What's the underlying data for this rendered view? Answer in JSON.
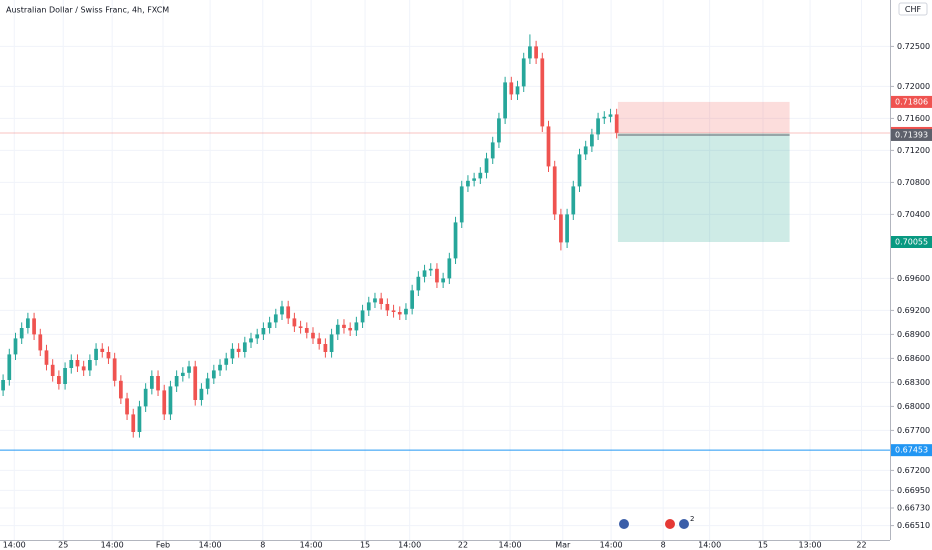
{
  "chart_data": {
    "type": "candlestick",
    "title": "Australian Dollar / Swiss Franc, 4h, FXCM",
    "currency": "CHF",
    "event_badge": "2",
    "up_color": "#26a69a",
    "down_color": "#ef5350",
    "grid": true,
    "xlim": [
      -0.5,
      143.1
    ],
    "xticks": [
      {
        "value": 1.8,
        "label": "14:00"
      },
      {
        "value": 9.7,
        "label": "25"
      },
      {
        "value": 17.6,
        "label": "14:00"
      },
      {
        "value": 25.8,
        "label": "Feb"
      },
      {
        "value": 33.4,
        "label": "14:00"
      },
      {
        "value": 41.9,
        "label": "8"
      },
      {
        "value": 49.7,
        "label": "14:00"
      },
      {
        "value": 58.4,
        "label": "15"
      },
      {
        "value": 65.6,
        "label": "14:00"
      },
      {
        "value": 74.2,
        "label": "22"
      },
      {
        "value": 81.8,
        "label": "14:00"
      },
      {
        "value": 90.3,
        "label": "Mar"
      },
      {
        "value": 98.1,
        "label": "14:00"
      },
      {
        "value": 106.5,
        "label": "8"
      },
      {
        "value": 114.0,
        "label": "14:00"
      },
      {
        "value": 122.6,
        "label": "15"
      },
      {
        "value": 130.2,
        "label": "13:00"
      },
      {
        "value": 138.5,
        "label": "22"
      }
    ],
    "ylim": [
      0.6633,
      0.7308
    ],
    "yticks": [
      {
        "value": 0.725,
        "label": "0.72500"
      },
      {
        "value": 0.72,
        "label": "0.72000"
      },
      {
        "value": 0.716,
        "label": "0.71600"
      },
      {
        "value": 0.712,
        "label": "0.71200"
      },
      {
        "value": 0.708,
        "label": "0.70800"
      },
      {
        "value": 0.704,
        "label": "0.70400"
      },
      {
        "value": 0.696,
        "label": "0.69600"
      },
      {
        "value": 0.692,
        "label": "0.69200"
      },
      {
        "value": 0.689,
        "label": "0.68900"
      },
      {
        "value": 0.686,
        "label": "0.68600"
      },
      {
        "value": 0.683,
        "label": "0.68300"
      },
      {
        "value": 0.68,
        "label": "0.68000"
      },
      {
        "value": 0.677,
        "label": "0.67700"
      },
      {
        "value": 0.672,
        "label": "0.67200"
      },
      {
        "value": 0.6695,
        "label": "0.66950"
      },
      {
        "value": 0.6673,
        "label": "0.66730"
      },
      {
        "value": 0.6651,
        "label": "0.66510"
      }
    ],
    "open": [
      0.682,
      0.6833,
      0.6865,
      0.6885,
      0.6898,
      0.691,
      0.689,
      0.687,
      0.6852,
      0.6838,
      0.6828,
      0.6848,
      0.6858,
      0.685,
      0.6845,
      0.6858,
      0.6872,
      0.6868,
      0.686,
      0.6832,
      0.681,
      0.679,
      0.6768,
      0.68,
      0.6822,
      0.6838,
      0.682,
      0.679,
      0.6825,
      0.6838,
      0.6842,
      0.685,
      0.6808,
      0.6822,
      0.6835,
      0.6845,
      0.6852,
      0.686,
      0.6872,
      0.6868,
      0.688,
      0.6885,
      0.689,
      0.6898,
      0.6905,
      0.6915,
      0.6925,
      0.691,
      0.69,
      0.6898,
      0.6892,
      0.6885,
      0.6878,
      0.6868,
      0.689,
      0.6902,
      0.6898,
      0.6895,
      0.6905,
      0.692,
      0.693,
      0.6935,
      0.6928,
      0.692,
      0.6918,
      0.6915,
      0.6922,
      0.6945,
      0.6962,
      0.697,
      0.6972,
      0.6955,
      0.696,
      0.6985,
      0.703,
      0.7075,
      0.7082,
      0.7085,
      0.7092,
      0.711,
      0.713,
      0.716,
      0.7205,
      0.719,
      0.72,
      0.7235,
      0.725,
      0.7235,
      0.715,
      0.71,
      0.704,
      0.7005,
      0.704,
      0.7075,
      0.7115,
      0.7125,
      0.714,
      0.716,
      0.7162,
      0.7165
    ],
    "high": [
      0.684,
      0.6872,
      0.6892,
      0.6905,
      0.6917,
      0.6917,
      0.6897,
      0.6877,
      0.6859,
      0.6845,
      0.6855,
      0.6865,
      0.6865,
      0.6857,
      0.6865,
      0.6879,
      0.6879,
      0.6875,
      0.6867,
      0.6839,
      0.6817,
      0.6797,
      0.6807,
      0.6829,
      0.6845,
      0.6845,
      0.6827,
      0.6832,
      0.6845,
      0.6849,
      0.6857,
      0.6857,
      0.6829,
      0.6842,
      0.6852,
      0.6859,
      0.6867,
      0.6879,
      0.6879,
      0.6887,
      0.6892,
      0.6897,
      0.6905,
      0.6912,
      0.6922,
      0.6932,
      0.6932,
      0.6917,
      0.6907,
      0.6905,
      0.6899,
      0.6892,
      0.6885,
      0.6897,
      0.6909,
      0.6909,
      0.6905,
      0.6912,
      0.6927,
      0.6937,
      0.6942,
      0.6942,
      0.6935,
      0.6927,
      0.6925,
      0.6929,
      0.6952,
      0.6969,
      0.6977,
      0.6979,
      0.6979,
      0.6967,
      0.6992,
      0.7037,
      0.7082,
      0.7089,
      0.7092,
      0.7099,
      0.7117,
      0.7137,
      0.7167,
      0.7212,
      0.7212,
      0.7207,
      0.7242,
      0.7265,
      0.7257,
      0.7242,
      0.7157,
      0.7107,
      0.7047,
      0.7047,
      0.7082,
      0.7122,
      0.7132,
      0.7147,
      0.7167,
      0.7169,
      0.7172,
      0.7172
    ],
    "low": [
      0.6813,
      0.6826,
      0.6858,
      0.6878,
      0.6891,
      0.6883,
      0.6863,
      0.6845,
      0.6831,
      0.6821,
      0.6821,
      0.6841,
      0.6843,
      0.6838,
      0.6838,
      0.6851,
      0.6861,
      0.6853,
      0.6825,
      0.6803,
      0.6783,
      0.6761,
      0.6761,
      0.6793,
      0.6815,
      0.6813,
      0.6783,
      0.6783,
      0.6818,
      0.6831,
      0.6835,
      0.6801,
      0.6801,
      0.6815,
      0.6828,
      0.6838,
      0.6845,
      0.6853,
      0.6861,
      0.6861,
      0.6873,
      0.6878,
      0.6883,
      0.6891,
      0.6898,
      0.6908,
      0.6903,
      0.6893,
      0.6891,
      0.6885,
      0.6878,
      0.6871,
      0.6861,
      0.6861,
      0.6883,
      0.6891,
      0.6888,
      0.6888,
      0.6898,
      0.6913,
      0.6923,
      0.6921,
      0.6913,
      0.6911,
      0.6908,
      0.6908,
      0.6915,
      0.6938,
      0.6955,
      0.6963,
      0.6948,
      0.6948,
      0.6953,
      0.6978,
      0.7023,
      0.7068,
      0.7075,
      0.7078,
      0.7085,
      0.7103,
      0.7123,
      0.7153,
      0.7183,
      0.7183,
      0.7193,
      0.7228,
      0.7228,
      0.7143,
      0.7093,
      0.7033,
      0.6995,
      0.6998,
      0.7033,
      0.7068,
      0.7108,
      0.7118,
      0.7133,
      0.7153,
      0.7155,
      0.7135
    ],
    "close": [
      0.6833,
      0.6865,
      0.6885,
      0.6898,
      0.691,
      0.689,
      0.687,
      0.6852,
      0.6838,
      0.6828,
      0.6848,
      0.6858,
      0.685,
      0.6845,
      0.6858,
      0.6872,
      0.6868,
      0.686,
      0.6832,
      0.681,
      0.679,
      0.6768,
      0.68,
      0.6822,
      0.6838,
      0.682,
      0.679,
      0.6825,
      0.6838,
      0.6842,
      0.685,
      0.6808,
      0.6822,
      0.6835,
      0.6845,
      0.6852,
      0.686,
      0.6872,
      0.6868,
      0.688,
      0.6885,
      0.689,
      0.6898,
      0.6905,
      0.6915,
      0.6925,
      0.691,
      0.69,
      0.6898,
      0.6892,
      0.6885,
      0.6878,
      0.6868,
      0.689,
      0.6902,
      0.6898,
      0.6895,
      0.6905,
      0.692,
      0.693,
      0.6935,
      0.6928,
      0.692,
      0.6918,
      0.6915,
      0.6922,
      0.6945,
      0.6962,
      0.697,
      0.6972,
      0.6955,
      0.696,
      0.6985,
      0.703,
      0.7075,
      0.7082,
      0.7085,
      0.7092,
      0.711,
      0.713,
      0.716,
      0.7205,
      0.719,
      0.72,
      0.7235,
      0.725,
      0.7235,
      0.715,
      0.71,
      0.704,
      0.7005,
      0.704,
      0.7075,
      0.7115,
      0.7125,
      0.714,
      0.716,
      0.7162,
      0.7165,
      0.7142
    ],
    "last_price": 0.71393,
    "last_price_color": "#5d606b",
    "position": {
      "entry": 0.71418,
      "stop": 0.71806,
      "target": 0.70055,
      "x_start": 99.2,
      "x_end": 126.9,
      "stop_color": "#ef5350",
      "target_color": "#089981"
    },
    "hline": {
      "value": 0.67453,
      "color": "#2196f3"
    }
  }
}
